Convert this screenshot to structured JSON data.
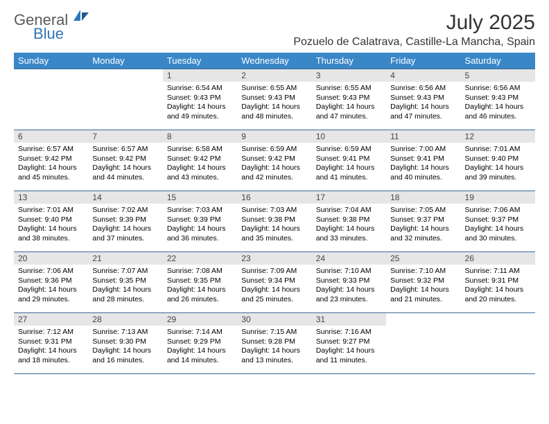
{
  "brand": {
    "part1": "General",
    "part2": "Blue"
  },
  "title": "July 2025",
  "location": "Pozuelo de Calatrava, Castille-La Mancha, Spain",
  "colors": {
    "header_bg": "#3a87c8",
    "header_text": "#ffffff",
    "daynum_bg": "#e6e6e6",
    "rule": "#3a6a94",
    "brand_gray": "#5a5a5a",
    "brand_blue": "#2f77b7",
    "page_bg": "#ffffff"
  },
  "weekdays": [
    "Sunday",
    "Monday",
    "Tuesday",
    "Wednesday",
    "Thursday",
    "Friday",
    "Saturday"
  ],
  "weeks": [
    [
      {
        "empty": true
      },
      {
        "empty": true
      },
      {
        "n": "1",
        "sr": "6:54 AM",
        "ss": "9:43 PM",
        "dl": "14 hours and 49 minutes."
      },
      {
        "n": "2",
        "sr": "6:55 AM",
        "ss": "9:43 PM",
        "dl": "14 hours and 48 minutes."
      },
      {
        "n": "3",
        "sr": "6:55 AM",
        "ss": "9:43 PM",
        "dl": "14 hours and 47 minutes."
      },
      {
        "n": "4",
        "sr": "6:56 AM",
        "ss": "9:43 PM",
        "dl": "14 hours and 47 minutes."
      },
      {
        "n": "5",
        "sr": "6:56 AM",
        "ss": "9:43 PM",
        "dl": "14 hours and 46 minutes."
      }
    ],
    [
      {
        "n": "6",
        "sr": "6:57 AM",
        "ss": "9:42 PM",
        "dl": "14 hours and 45 minutes."
      },
      {
        "n": "7",
        "sr": "6:57 AM",
        "ss": "9:42 PM",
        "dl": "14 hours and 44 minutes."
      },
      {
        "n": "8",
        "sr": "6:58 AM",
        "ss": "9:42 PM",
        "dl": "14 hours and 43 minutes."
      },
      {
        "n": "9",
        "sr": "6:59 AM",
        "ss": "9:42 PM",
        "dl": "14 hours and 42 minutes."
      },
      {
        "n": "10",
        "sr": "6:59 AM",
        "ss": "9:41 PM",
        "dl": "14 hours and 41 minutes."
      },
      {
        "n": "11",
        "sr": "7:00 AM",
        "ss": "9:41 PM",
        "dl": "14 hours and 40 minutes."
      },
      {
        "n": "12",
        "sr": "7:01 AM",
        "ss": "9:40 PM",
        "dl": "14 hours and 39 minutes."
      }
    ],
    [
      {
        "n": "13",
        "sr": "7:01 AM",
        "ss": "9:40 PM",
        "dl": "14 hours and 38 minutes."
      },
      {
        "n": "14",
        "sr": "7:02 AM",
        "ss": "9:39 PM",
        "dl": "14 hours and 37 minutes."
      },
      {
        "n": "15",
        "sr": "7:03 AM",
        "ss": "9:39 PM",
        "dl": "14 hours and 36 minutes."
      },
      {
        "n": "16",
        "sr": "7:03 AM",
        "ss": "9:38 PM",
        "dl": "14 hours and 35 minutes."
      },
      {
        "n": "17",
        "sr": "7:04 AM",
        "ss": "9:38 PM",
        "dl": "14 hours and 33 minutes."
      },
      {
        "n": "18",
        "sr": "7:05 AM",
        "ss": "9:37 PM",
        "dl": "14 hours and 32 minutes."
      },
      {
        "n": "19",
        "sr": "7:06 AM",
        "ss": "9:37 PM",
        "dl": "14 hours and 30 minutes."
      }
    ],
    [
      {
        "n": "20",
        "sr": "7:06 AM",
        "ss": "9:36 PM",
        "dl": "14 hours and 29 minutes."
      },
      {
        "n": "21",
        "sr": "7:07 AM",
        "ss": "9:35 PM",
        "dl": "14 hours and 28 minutes."
      },
      {
        "n": "22",
        "sr": "7:08 AM",
        "ss": "9:35 PM",
        "dl": "14 hours and 26 minutes."
      },
      {
        "n": "23",
        "sr": "7:09 AM",
        "ss": "9:34 PM",
        "dl": "14 hours and 25 minutes."
      },
      {
        "n": "24",
        "sr": "7:10 AM",
        "ss": "9:33 PM",
        "dl": "14 hours and 23 minutes."
      },
      {
        "n": "25",
        "sr": "7:10 AM",
        "ss": "9:32 PM",
        "dl": "14 hours and 21 minutes."
      },
      {
        "n": "26",
        "sr": "7:11 AM",
        "ss": "9:31 PM",
        "dl": "14 hours and 20 minutes."
      }
    ],
    [
      {
        "n": "27",
        "sr": "7:12 AM",
        "ss": "9:31 PM",
        "dl": "14 hours and 18 minutes."
      },
      {
        "n": "28",
        "sr": "7:13 AM",
        "ss": "9:30 PM",
        "dl": "14 hours and 16 minutes."
      },
      {
        "n": "29",
        "sr": "7:14 AM",
        "ss": "9:29 PM",
        "dl": "14 hours and 14 minutes."
      },
      {
        "n": "30",
        "sr": "7:15 AM",
        "ss": "9:28 PM",
        "dl": "14 hours and 13 minutes."
      },
      {
        "n": "31",
        "sr": "7:16 AM",
        "ss": "9:27 PM",
        "dl": "14 hours and 11 minutes."
      },
      {
        "empty": true
      },
      {
        "empty": true
      }
    ]
  ],
  "labels": {
    "sunrise": "Sunrise:",
    "sunset": "Sunset:",
    "daylight": "Daylight:"
  }
}
